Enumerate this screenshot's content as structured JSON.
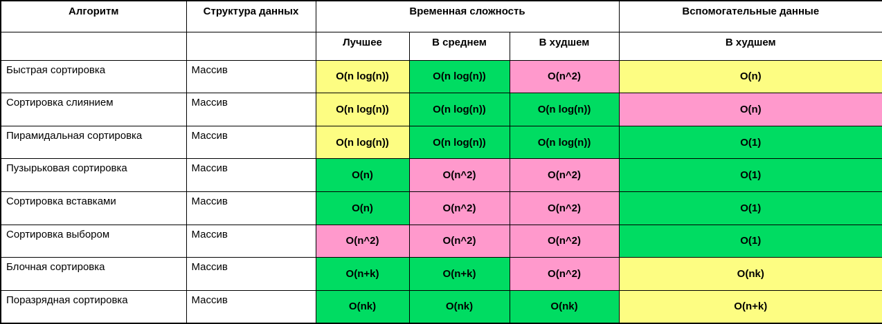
{
  "table": {
    "title_semantics": "sorting-algorithm-complexity-table",
    "colors": {
      "green": "#00DC62",
      "yellow": "#FDFD82",
      "pink": "#FF99CC",
      "grid": "#000000",
      "background": "#FFFFFF"
    },
    "header": {
      "col_algorithm": "Алгоритм",
      "col_data_structure": "Структура данных",
      "col_time_complexity": "Временная сложность",
      "col_auxiliary": "Вспомогательные данные",
      "sub_best": "Лучшее",
      "sub_average": "В среднем",
      "sub_worst": "В худшем",
      "sub_aux_worst": "В худшем"
    },
    "rows": [
      {
        "algorithm": "Быстрая сортировка",
        "structure": "Массив",
        "best": {
          "v": "O(n log(n))",
          "c": "yellow"
        },
        "average": {
          "v": "O(n log(n))",
          "c": "green"
        },
        "worst": {
          "v": "O(n^2)",
          "c": "pink"
        },
        "aux": {
          "v": "O(n)",
          "c": "yellow"
        }
      },
      {
        "algorithm": "Сортировка слиянием",
        "structure": "Массив",
        "best": {
          "v": "O(n log(n))",
          "c": "yellow"
        },
        "average": {
          "v": "O(n log(n))",
          "c": "green"
        },
        "worst": {
          "v": "O(n log(n))",
          "c": "green"
        },
        "aux": {
          "v": "O(n)",
          "c": "pink"
        }
      },
      {
        "algorithm": "Пирамидальная сортировка",
        "structure": "Массив",
        "best": {
          "v": "O(n log(n))",
          "c": "yellow"
        },
        "average": {
          "v": "O(n log(n))",
          "c": "green"
        },
        "worst": {
          "v": "O(n log(n))",
          "c": "green"
        },
        "aux": {
          "v": "O(1)",
          "c": "green"
        }
      },
      {
        "algorithm": "Пузырьковая сортировка",
        "structure": "Массив",
        "best": {
          "v": "O(n)",
          "c": "green"
        },
        "average": {
          "v": "O(n^2)",
          "c": "pink"
        },
        "worst": {
          "v": "O(n^2)",
          "c": "pink"
        },
        "aux": {
          "v": "O(1)",
          "c": "green"
        }
      },
      {
        "algorithm": "Сортировка вставками",
        "structure": "Массив",
        "best": {
          "v": "O(n)",
          "c": "green"
        },
        "average": {
          "v": "O(n^2)",
          "c": "pink"
        },
        "worst": {
          "v": "O(n^2)",
          "c": "pink"
        },
        "aux": {
          "v": "O(1)",
          "c": "green"
        }
      },
      {
        "algorithm": "Сортировка выбором",
        "structure": "Массив",
        "best": {
          "v": "O(n^2)",
          "c": "pink"
        },
        "average": {
          "v": "O(n^2)",
          "c": "pink"
        },
        "worst": {
          "v": "O(n^2)",
          "c": "pink"
        },
        "aux": {
          "v": "O(1)",
          "c": "green"
        }
      },
      {
        "algorithm": "Блочная сортировка",
        "structure": "Массив",
        "best": {
          "v": "O(n+k)",
          "c": "green"
        },
        "average": {
          "v": "O(n+k)",
          "c": "green"
        },
        "worst": {
          "v": "O(n^2)",
          "c": "pink"
        },
        "aux": {
          "v": "O(nk)",
          "c": "yellow"
        }
      },
      {
        "algorithm": "Поразрядная сортировка",
        "structure": "Массив",
        "best": {
          "v": "O(nk)",
          "c": "green"
        },
        "average": {
          "v": "O(nk)",
          "c": "green"
        },
        "worst": {
          "v": "O(nk)",
          "c": "green"
        },
        "aux": {
          "v": "O(n+k)",
          "c": "yellow"
        }
      }
    ]
  }
}
